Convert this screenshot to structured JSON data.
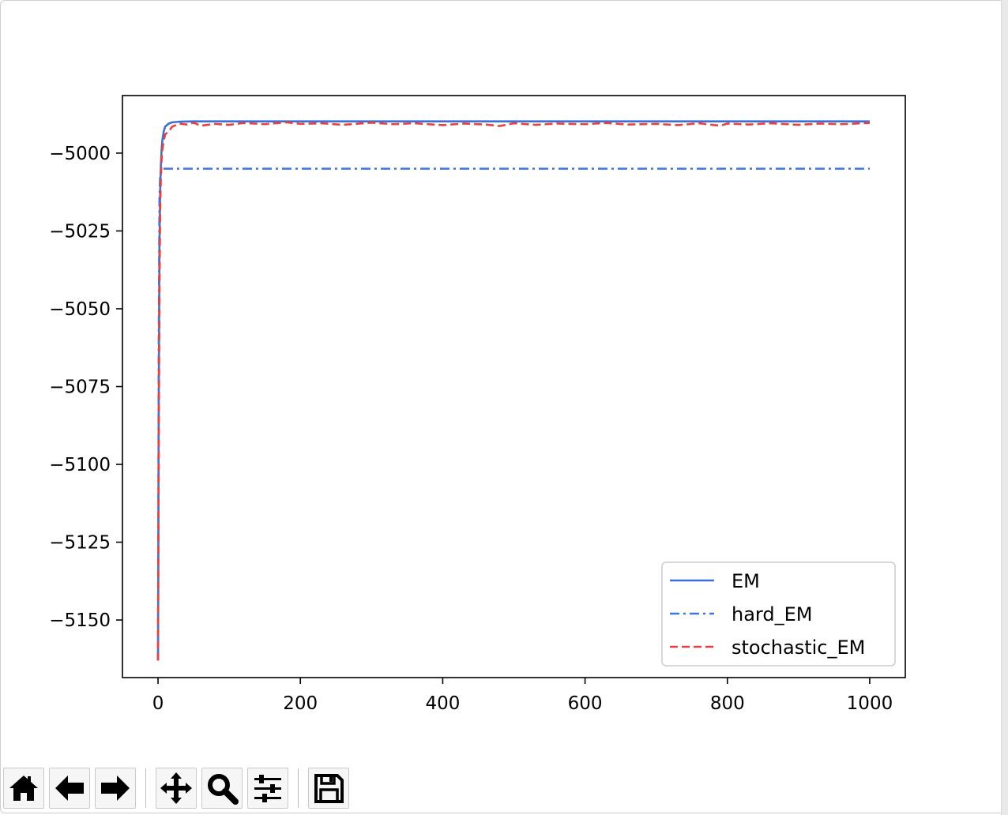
{
  "chart_data": {
    "type": "line",
    "title": "",
    "xlabel": "",
    "ylabel": "",
    "xlim": [
      -50,
      1050
    ],
    "ylim": [
      -5168.5,
      -4981.5
    ],
    "xticks": [
      0,
      200,
      400,
      600,
      800,
      1000
    ],
    "xtick_labels": [
      "0",
      "200",
      "400",
      "600",
      "800",
      "1000"
    ],
    "yticks": [
      -5000,
      -5025,
      -5050,
      -5075,
      -5100,
      -5125,
      -5150
    ],
    "ytick_labels": [
      "−5000",
      "−5025",
      "−5050",
      "−5075",
      "−5100",
      "−5125",
      "−5150"
    ],
    "legend_position": "lower-right",
    "grid": false,
    "series": [
      {
        "name": "EM",
        "color": "#3b6fd9",
        "style": "solid",
        "x": [
          0,
          1,
          2,
          3,
          4,
          5,
          6,
          8,
          10,
          15,
          20,
          30,
          50,
          100,
          200,
          400,
          600,
          800,
          1000
        ],
        "y": [
          -5163,
          -5080,
          -5030,
          -5012,
          -5004,
          -4999,
          -4996,
          -4993,
          -4991.5,
          -4990.5,
          -4990.1,
          -4989.9,
          -4989.8,
          -4989.8,
          -4989.8,
          -4989.8,
          -4989.8,
          -4989.8,
          -4989.8
        ]
      },
      {
        "name": "hard_EM",
        "color": "#3b76e6",
        "style": "dashdot",
        "x": [
          0,
          1,
          2,
          3,
          4,
          6,
          10,
          50,
          200,
          400,
          600,
          800,
          1000
        ],
        "y": [
          -5163,
          -5060,
          -5015,
          -5007,
          -5005.5,
          -5005,
          -5005,
          -5005,
          -5005,
          -5005,
          -5005,
          -5005,
          -5005
        ]
      },
      {
        "name": "stochastic_EM",
        "color": "#e8413c",
        "style": "dashed",
        "x": [
          0,
          1,
          2,
          3,
          4,
          5,
          6,
          8,
          10,
          15,
          20,
          25,
          30,
          40,
          50,
          60,
          80,
          100,
          120,
          150,
          180,
          200,
          230,
          260,
          300,
          330,
          360,
          400,
          430,
          460,
          480,
          500,
          530,
          560,
          600,
          630,
          660,
          700,
          730,
          760,
          790,
          800,
          830,
          860,
          900,
          930,
          960,
          1000
        ],
        "y": [
          -5163,
          -5095,
          -5045,
          -5018,
          -5008,
          -5002,
          -4999,
          -4996,
          -4994,
          -4993,
          -4991.5,
          -4991,
          -4990.5,
          -4990.8,
          -4990.2,
          -4991.2,
          -4990.6,
          -4990.9,
          -4990.3,
          -4990.7,
          -4990.1,
          -4990.6,
          -4990.4,
          -4990.9,
          -4990.2,
          -4990.7,
          -4990.4,
          -4991,
          -4990.5,
          -4990.8,
          -4991.3,
          -4990.4,
          -4990.9,
          -4990.5,
          -4990.7,
          -4990.3,
          -4990.8,
          -4990.6,
          -4991,
          -4990.4,
          -4991.2,
          -4990.5,
          -4990.8,
          -4990.4,
          -4990.9,
          -4990.5,
          -4990.7,
          -4990.3
        ]
      }
    ]
  },
  "toolbar": {
    "buttons": [
      {
        "name": "home-button",
        "icon": "home-icon"
      },
      {
        "name": "back-button",
        "icon": "arrow-left-icon"
      },
      {
        "name": "forward-button",
        "icon": "arrow-right-icon"
      },
      {
        "name": "pan-button",
        "icon": "move-icon"
      },
      {
        "name": "zoom-button",
        "icon": "magnifier-icon"
      },
      {
        "name": "configure-subplots-button",
        "icon": "sliders-icon"
      },
      {
        "name": "save-button",
        "icon": "floppy-disk-icon"
      }
    ]
  }
}
